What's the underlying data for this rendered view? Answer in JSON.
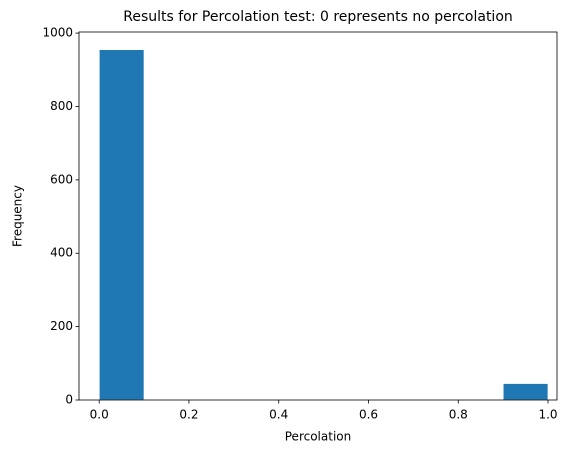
{
  "chart_data": {
    "type": "histogram",
    "title": "Results for Percolation test: 0 represents no percolation",
    "xlabel": "Percolation",
    "ylabel": "Frequency",
    "bins": [
      0,
      0.1,
      0.2,
      0.3,
      0.4,
      0.5,
      0.6,
      0.7,
      0.8,
      0.9,
      1.0
    ],
    "values": [
      955,
      0,
      0,
      0,
      0,
      0,
      0,
      0,
      0,
      45
    ],
    "color": "#1f77b4",
    "xlim": [
      -0.045,
      1.02
    ],
    "ylim": [
      0,
      1003
    ],
    "xticks": [
      {
        "value": 0,
        "label": "0.0"
      },
      {
        "value": 0.2,
        "label": "0.2"
      },
      {
        "value": 0.4,
        "label": "0.4"
      },
      {
        "value": 0.6,
        "label": "0.6"
      },
      {
        "value": 0.8,
        "label": "0.8"
      },
      {
        "value": 1,
        "label": "1.0"
      }
    ],
    "yticks": [
      0,
      200,
      400,
      600,
      800,
      1000
    ]
  }
}
